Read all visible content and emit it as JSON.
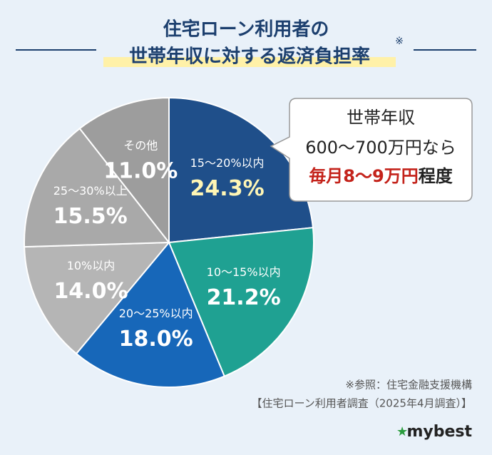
{
  "chart_data": {
    "type": "pie",
    "title_lines": [
      "住宅ローン利用者の",
      "世帯年収に対する返済負担率"
    ],
    "title_note": "※",
    "categories": [
      "15〜20%以内",
      "10〜15%以内",
      "20〜25%以内",
      "10%以内",
      "25〜30%以上",
      "その他"
    ],
    "values": [
      24.3,
      21.2,
      18.0,
      14.0,
      15.5,
      11.0
    ],
    "value_labels": [
      "24.3%",
      "21.2%",
      "18.0%",
      "14.0%",
      "15.5%",
      "11.0%"
    ],
    "colors": [
      "#1f4f8a",
      "#1fa192",
      "#1767b9",
      "#b5b5b5",
      "#a9a9a9",
      "#9d9d9d"
    ],
    "value_label_colors": [
      "#fff6b5",
      "#ffffff",
      "#ffffff",
      "#ffffff",
      "#ffffff",
      "#ffffff"
    ],
    "callout": {
      "lines": [
        "世帯年収",
        "600〜700万円なら"
      ],
      "highlight": "毎月8〜9万円",
      "tail": "程度"
    },
    "source": [
      "※参照：住宅金融支援機構",
      "【住宅ローン利用者調査（2025年4月調査）】"
    ],
    "brand": "mybest"
  }
}
